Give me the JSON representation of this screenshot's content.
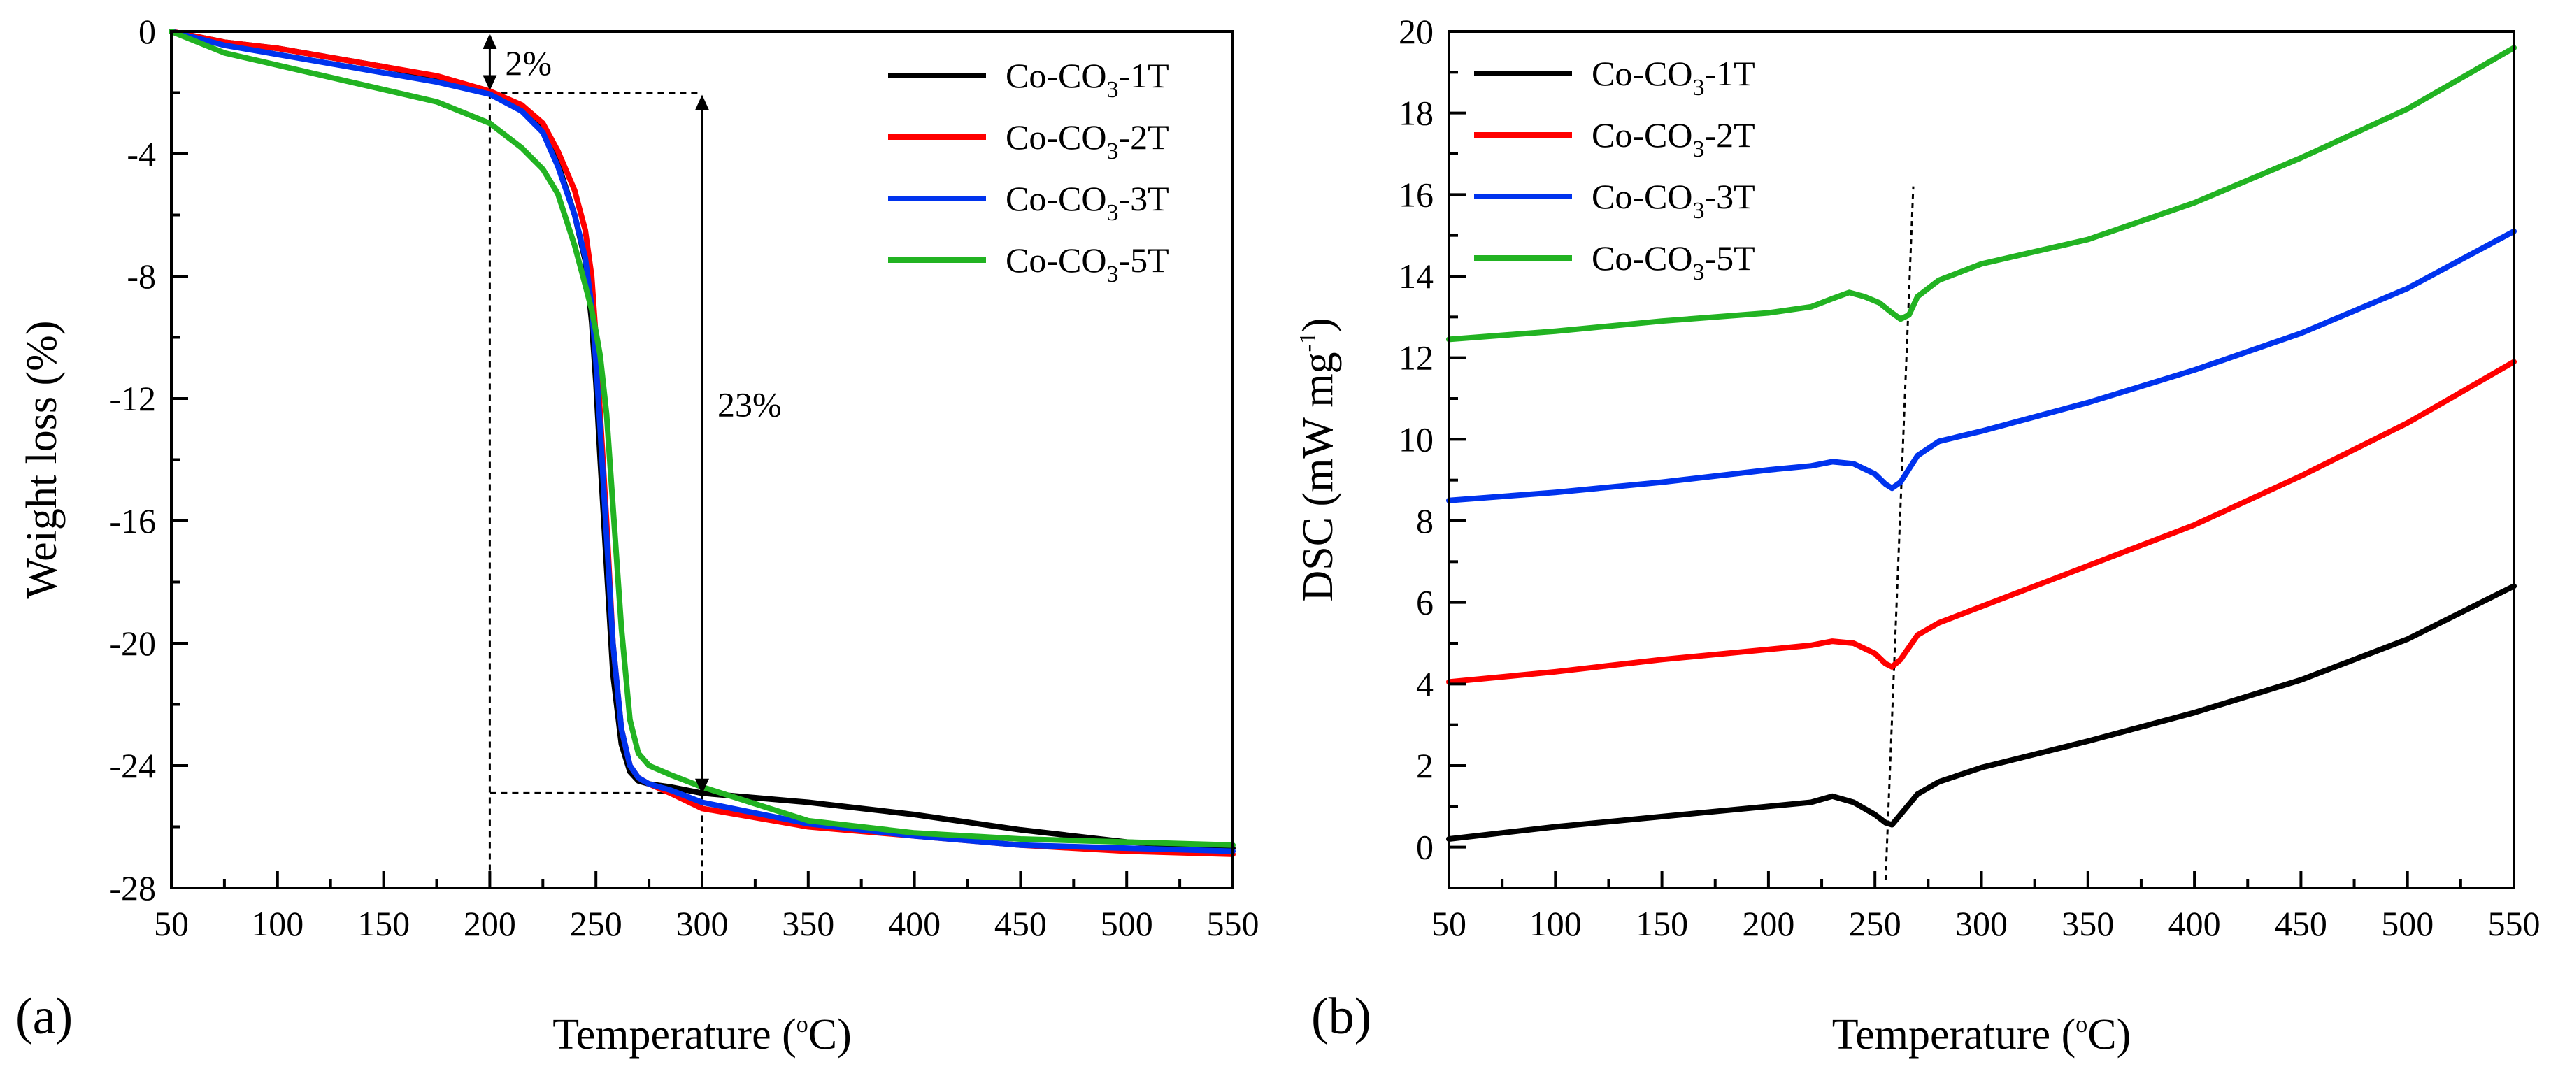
{
  "figure": {
    "panels": [
      "(a)",
      "(b)"
    ]
  },
  "chart_data": [
    {
      "type": "line",
      "panel": "(a)",
      "title": "",
      "xlabel": "Temperature (°C)",
      "xlabel_parts": {
        "main": "Temperature (",
        "sup": "o",
        "tail": "C)"
      },
      "ylabel": "Weight loss (%)",
      "xlim": [
        50,
        550
      ],
      "ylim": [
        -28,
        0
      ],
      "xticks": [
        50,
        100,
        150,
        200,
        250,
        300,
        350,
        400,
        450,
        500,
        550
      ],
      "yticks": [
        0,
        -4,
        -8,
        -12,
        -16,
        -20,
        -24,
        -28
      ],
      "legend_position": "top-right",
      "annotations": [
        {
          "text": "2%",
          "x": 200,
          "y_from": 0,
          "y_to": -2
        },
        {
          "text": "23%",
          "x": 300,
          "y_from": -2,
          "y_to": -25
        }
      ],
      "guide_lines": {
        "x_left": 200,
        "x_right": 300,
        "y_top": -2,
        "y_bottom": -24.9
      },
      "series": [
        {
          "name": "Co-CO3-1T",
          "label_parts": {
            "main": "Co-CO",
            "sub": "3",
            "tail": "-1T"
          },
          "color": "#000000",
          "x": [
            50,
            75,
            100,
            125,
            150,
            175,
            200,
            215,
            225,
            232,
            240,
            245,
            248,
            250,
            252,
            255,
            258,
            262,
            266,
            270,
            275,
            285,
            300,
            350,
            400,
            450,
            500,
            550
          ],
          "y": [
            0,
            -0.35,
            -0.55,
            -0.85,
            -1.15,
            -1.5,
            -2.0,
            -2.5,
            -3.2,
            -4.3,
            -6.0,
            -7.5,
            -9.5,
            -11.5,
            -14.0,
            -17.5,
            -21.0,
            -23.3,
            -24.2,
            -24.5,
            -24.6,
            -24.7,
            -24.9,
            -25.2,
            -25.6,
            -26.1,
            -26.5,
            -26.7
          ]
        },
        {
          "name": "Co-CO3-2T",
          "label_parts": {
            "main": "Co-CO",
            "sub": "3",
            "tail": "-2T"
          },
          "color": "#ff0000",
          "x": [
            50,
            75,
            100,
            125,
            150,
            175,
            200,
            215,
            225,
            232,
            240,
            245,
            248,
            250,
            252,
            255,
            258,
            262,
            266,
            270,
            275,
            285,
            300,
            350,
            400,
            450,
            500,
            550
          ],
          "y": [
            0,
            -0.35,
            -0.55,
            -0.85,
            -1.15,
            -1.45,
            -1.95,
            -2.4,
            -3.0,
            -3.9,
            -5.2,
            -6.5,
            -8.0,
            -10.0,
            -12.5,
            -16.0,
            -20.0,
            -22.8,
            -24.0,
            -24.4,
            -24.6,
            -24.9,
            -25.4,
            -26.0,
            -26.3,
            -26.6,
            -26.8,
            -26.9
          ]
        },
        {
          "name": "Co-CO3-3T",
          "label_parts": {
            "main": "Co-CO",
            "sub": "3",
            "tail": "-3T"
          },
          "color": "#0033ee",
          "x": [
            50,
            75,
            100,
            125,
            150,
            175,
            200,
            215,
            225,
            232,
            240,
            245,
            248,
            250,
            252,
            255,
            258,
            262,
            266,
            270,
            275,
            285,
            300,
            350,
            400,
            450,
            500,
            550
          ],
          "y": [
            0,
            -0.45,
            -0.75,
            -1.05,
            -1.35,
            -1.65,
            -2.05,
            -2.6,
            -3.3,
            -4.4,
            -6.0,
            -7.4,
            -9.0,
            -10.8,
            -13.0,
            -16.5,
            -20.0,
            -22.8,
            -24.0,
            -24.4,
            -24.6,
            -24.8,
            -25.2,
            -25.9,
            -26.3,
            -26.6,
            -26.7,
            -26.8
          ]
        },
        {
          "name": "Co-CO3-5T",
          "label_parts": {
            "main": "Co-CO",
            "sub": "3",
            "tail": "-5T"
          },
          "color": "#22b322",
          "x": [
            50,
            75,
            100,
            125,
            150,
            175,
            200,
            215,
            225,
            232,
            240,
            245,
            248,
            250,
            252,
            255,
            258,
            262,
            266,
            270,
            275,
            285,
            300,
            350,
            400,
            450,
            500,
            550
          ],
          "y": [
            0,
            -0.7,
            -1.1,
            -1.5,
            -1.9,
            -2.3,
            -3.0,
            -3.8,
            -4.5,
            -5.3,
            -7.0,
            -8.3,
            -9.1,
            -9.8,
            -10.6,
            -12.5,
            -15.5,
            -19.5,
            -22.5,
            -23.6,
            -24.0,
            -24.3,
            -24.7,
            -25.8,
            -26.2,
            -26.4,
            -26.5,
            -26.6
          ]
        }
      ]
    },
    {
      "type": "line",
      "panel": "(b)",
      "title": "",
      "xlabel": "Temperature (°C)",
      "xlabel_parts": {
        "main": "Temperature (",
        "sup": "o",
        "tail": "C)"
      },
      "ylabel": "DSC (mW mg-1)",
      "ylabel_parts": {
        "main": "DSC (mW mg",
        "sup": "-1",
        "tail": ")"
      },
      "xlim": [
        50,
        550
      ],
      "ylim": [
        -1,
        20
      ],
      "xticks": [
        50,
        100,
        150,
        200,
        250,
        300,
        350,
        400,
        450,
        500,
        550
      ],
      "yticks": [
        0,
        2,
        4,
        6,
        8,
        10,
        12,
        14,
        16,
        18,
        20
      ],
      "legend_position": "top-left",
      "guide_line": {
        "x1": 255,
        "y1": -0.8,
        "x2": 268,
        "y2": 16.2,
        "style": "dotted"
      },
      "series": [
        {
          "name": "Co-CO3-1T",
          "label_parts": {
            "main": "Co-CO",
            "sub": "3",
            "tail": "-1T"
          },
          "color": "#000000",
          "x": [
            50,
            100,
            150,
            200,
            220,
            230,
            240,
            250,
            255,
            258,
            262,
            270,
            280,
            300,
            350,
            400,
            450,
            500,
            550
          ],
          "y": [
            0.2,
            0.5,
            0.75,
            1.0,
            1.1,
            1.25,
            1.1,
            0.8,
            0.6,
            0.55,
            0.8,
            1.3,
            1.6,
            1.95,
            2.6,
            3.3,
            4.1,
            5.1,
            6.4
          ]
        },
        {
          "name": "Co-CO3-2T",
          "label_parts": {
            "main": "Co-CO",
            "sub": "3",
            "tail": "-2T"
          },
          "color": "#ff0000",
          "x": [
            50,
            100,
            150,
            200,
            220,
            230,
            240,
            250,
            255,
            258,
            262,
            270,
            280,
            300,
            350,
            400,
            450,
            500,
            550
          ],
          "y": [
            4.05,
            4.3,
            4.6,
            4.85,
            4.95,
            5.05,
            5.0,
            4.75,
            4.5,
            4.42,
            4.6,
            5.2,
            5.5,
            5.9,
            6.9,
            7.9,
            9.1,
            10.4,
            11.9
          ]
        },
        {
          "name": "Co-CO3-3T",
          "label_parts": {
            "main": "Co-CO",
            "sub": "3",
            "tail": "-3T"
          },
          "color": "#0033ee",
          "x": [
            50,
            100,
            150,
            200,
            220,
            230,
            240,
            250,
            255,
            258,
            262,
            270,
            280,
            300,
            350,
            400,
            450,
            500,
            550
          ],
          "y": [
            8.5,
            8.7,
            8.95,
            9.25,
            9.35,
            9.45,
            9.4,
            9.15,
            8.9,
            8.8,
            8.95,
            9.6,
            9.95,
            10.2,
            10.9,
            11.7,
            12.6,
            13.7,
            15.1
          ]
        },
        {
          "name": "Co-CO3-5T",
          "label_parts": {
            "main": "Co-CO",
            "sub": "3",
            "tail": "-5T"
          },
          "color": "#22b322",
          "x": [
            50,
            100,
            150,
            200,
            220,
            230,
            238,
            245,
            252,
            258,
            262,
            266,
            270,
            280,
            300,
            350,
            400,
            450,
            500,
            550
          ],
          "y": [
            12.45,
            12.65,
            12.9,
            13.1,
            13.25,
            13.45,
            13.6,
            13.5,
            13.35,
            13.1,
            12.95,
            13.05,
            13.5,
            13.9,
            14.3,
            14.9,
            15.8,
            16.9,
            18.1,
            19.6
          ]
        }
      ]
    }
  ]
}
